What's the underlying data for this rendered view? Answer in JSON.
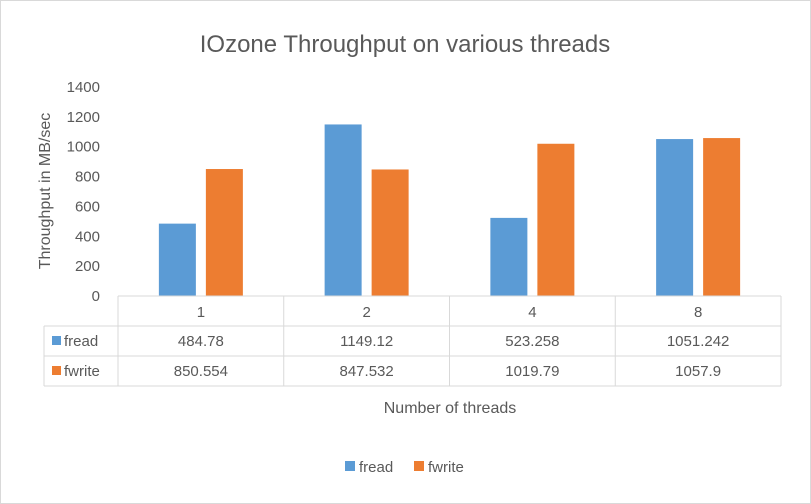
{
  "chart_data": {
    "type": "bar",
    "title": "IOzone Throughput on various threads",
    "xlabel": "Number of threads",
    "ylabel": "Throughput in MB/sec",
    "ylim": [
      0,
      1400
    ],
    "yticks": [
      "0",
      "200",
      "400",
      "600",
      "800",
      "1000",
      "1200",
      "1400"
    ],
    "categories": [
      "1",
      "2",
      "4",
      "8"
    ],
    "series": [
      {
        "name": "fread",
        "color": "#5b9bd5",
        "values": [
          484.78,
          1149.12,
          523.258,
          1051.242
        ],
        "labels": [
          "484.78",
          "1149.12",
          "523.258",
          "1051.242"
        ]
      },
      {
        "name": "fwrite",
        "color": "#ed7d31",
        "values": [
          850.554,
          847.532,
          1019.79,
          1057.9
        ],
        "labels": [
          "850.554",
          "847.532",
          "1019.79",
          "1057.9"
        ]
      }
    ],
    "data_table": true,
    "legend_position": "bottom",
    "grid": false
  }
}
